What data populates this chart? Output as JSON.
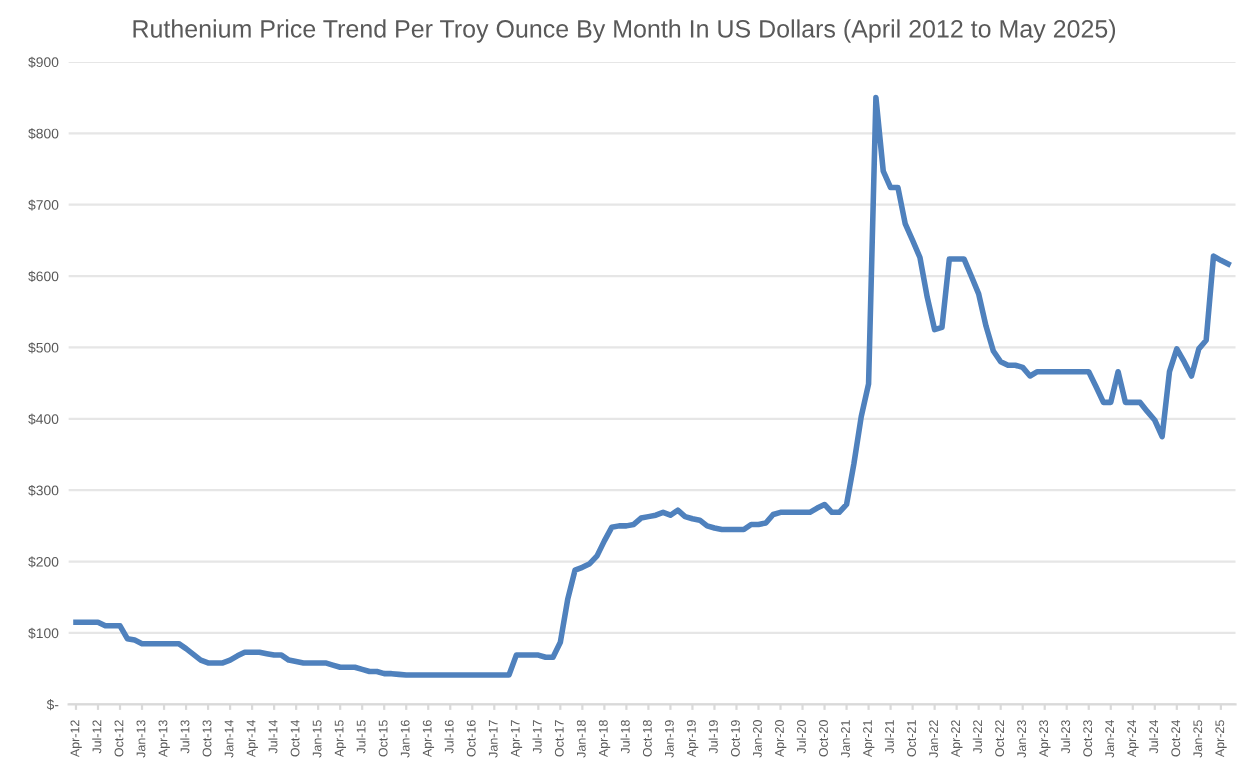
{
  "chart_data": {
    "type": "line",
    "title": "Ruthenium Price Trend Per Troy Ounce By Month In US Dollars (April 2012 to May 2025)",
    "categories": [
      "Apr-12",
      null,
      null,
      "Jul-12",
      null,
      null,
      "Oct-12",
      null,
      null,
      "Jan-13",
      null,
      null,
      "Apr-13",
      null,
      null,
      "Jul-13",
      null,
      null,
      "Oct-13",
      null,
      null,
      "Jan-14",
      null,
      null,
      "Apr-14",
      null,
      null,
      "Jul-14",
      null,
      null,
      "Oct-14",
      null,
      null,
      "Jan-15",
      null,
      null,
      "Apr-15",
      null,
      null,
      "Jul-15",
      null,
      null,
      "Oct-15",
      null,
      null,
      "Jan-16",
      null,
      null,
      "Apr-16",
      null,
      null,
      "Jul-16",
      null,
      null,
      "Oct-16",
      null,
      null,
      "Jan-17",
      null,
      null,
      "Apr-17",
      null,
      null,
      "Jul-17",
      null,
      null,
      "Oct-17",
      null,
      null,
      "Jan-18",
      null,
      null,
      "Apr-18",
      null,
      null,
      "Jul-18",
      null,
      null,
      "Oct-18",
      null,
      null,
      "Jan-19",
      null,
      null,
      "Apr-19",
      null,
      null,
      "Jul-19",
      null,
      null,
      "Oct-19",
      null,
      null,
      "Jan-20",
      null,
      null,
      "Apr-20",
      null,
      null,
      "Jul-20",
      null,
      null,
      "Oct-20",
      null,
      null,
      "Jan-21",
      null,
      null,
      "Apr-21",
      null,
      null,
      "Jul-21",
      null,
      null,
      "Oct-21",
      null,
      null,
      "Jan-22",
      null,
      null,
      "Apr-22",
      null,
      null,
      "Jul-22",
      null,
      null,
      "Oct-22",
      null,
      null,
      "Jan-23",
      null,
      null,
      "Apr-23",
      null,
      null,
      "Jul-23",
      null,
      null,
      "Oct-23",
      null,
      null,
      "Jan-24",
      null,
      null,
      "Apr-24",
      null,
      null,
      "Jul-24",
      null,
      null,
      "Oct-24",
      null,
      null,
      "Jan-25",
      null,
      null,
      "Apr-25",
      null
    ],
    "series": [
      {
        "color": "#4f81bd",
        "values": [
          115,
          115,
          115,
          115,
          110,
          110,
          110,
          92,
          90,
          85,
          85,
          85,
          85,
          85,
          85,
          78,
          70,
          62,
          58,
          58,
          58,
          62,
          68,
          73,
          73,
          73,
          71,
          69,
          69,
          62,
          60,
          58,
          58,
          58,
          58,
          55,
          52,
          52,
          52,
          49,
          46,
          46,
          43,
          43,
          42,
          41,
          41,
          41,
          41,
          41,
          41,
          41,
          41,
          41,
          41,
          41,
          41,
          41,
          41,
          41,
          69,
          69,
          69,
          69,
          66,
          66,
          87,
          147,
          188,
          192,
          197,
          208,
          229,
          248,
          250,
          250,
          252,
          261,
          263,
          265,
          269,
          265,
          272,
          263,
          260,
          258,
          250,
          247,
          245,
          245,
          245,
          245,
          252,
          252,
          254,
          266,
          269,
          269,
          269,
          269,
          269,
          275,
          280,
          269,
          269,
          280,
          337,
          403,
          449,
          850,
          747,
          724,
          724,
          673,
          650,
          626,
          570,
          525,
          528,
          624,
          624,
          624,
          600,
          575,
          530,
          495,
          480,
          475,
          475,
          472,
          460,
          466,
          466,
          466,
          466,
          466,
          466,
          466,
          466,
          445,
          423,
          423,
          466,
          423,
          423,
          423,
          410,
          398,
          375,
          466,
          498,
          480,
          460,
          498,
          510,
          628,
          622,
          617
        ]
      }
    ],
    "ylim": [
      0,
      900
    ],
    "yticks": [
      {
        "value": 0,
        "label": "$-"
      },
      {
        "value": 100,
        "label": "$100"
      },
      {
        "value": 200,
        "label": "$200"
      },
      {
        "value": 300,
        "label": "$300"
      },
      {
        "value": 400,
        "label": "$400"
      },
      {
        "value": 500,
        "label": "$500"
      },
      {
        "value": 600,
        "label": "$600"
      },
      {
        "value": 700,
        "label": "$700"
      },
      {
        "value": 800,
        "label": "$800"
      },
      {
        "value": 900,
        "label": "$900"
      }
    ],
    "grid": "y",
    "legend": false,
    "marker": "none",
    "line_style": "solid"
  }
}
